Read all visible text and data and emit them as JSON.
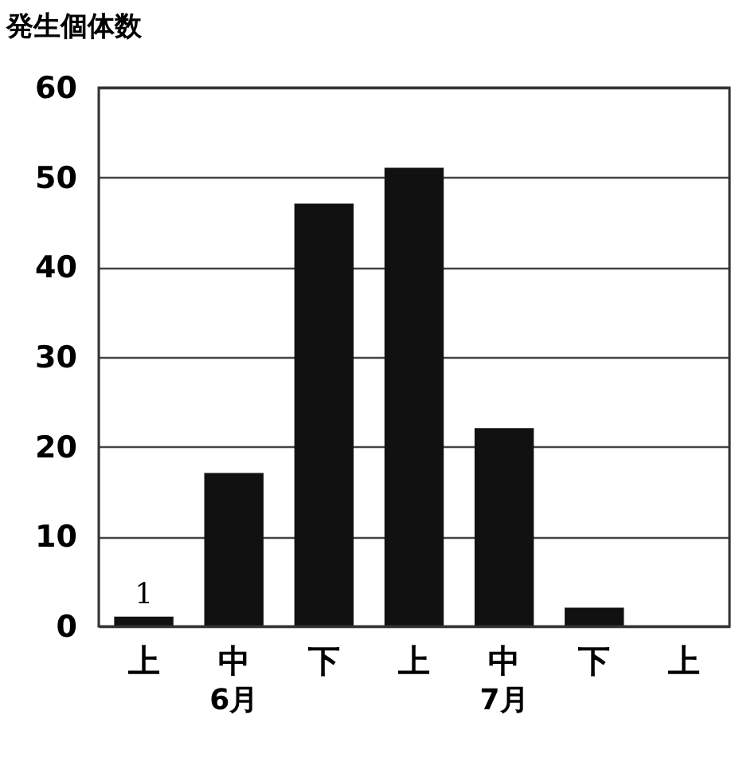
{
  "chart_data": {
    "type": "bar",
    "ylabel": "発生個体数",
    "categories": [
      "上",
      "中",
      "下",
      "上",
      "中",
      "下",
      "上"
    ],
    "values": [
      1,
      17,
      47,
      51,
      22,
      2,
      0
    ],
    "value_labels": [
      "1",
      null,
      null,
      null,
      null,
      null,
      null
    ],
    "color": "#111111",
    "ylim": [
      0,
      60
    ],
    "yticks": [
      0,
      10,
      20,
      30,
      40,
      50,
      60
    ],
    "grid": "y",
    "annotations": [
      "6月",
      "7月"
    ]
  }
}
